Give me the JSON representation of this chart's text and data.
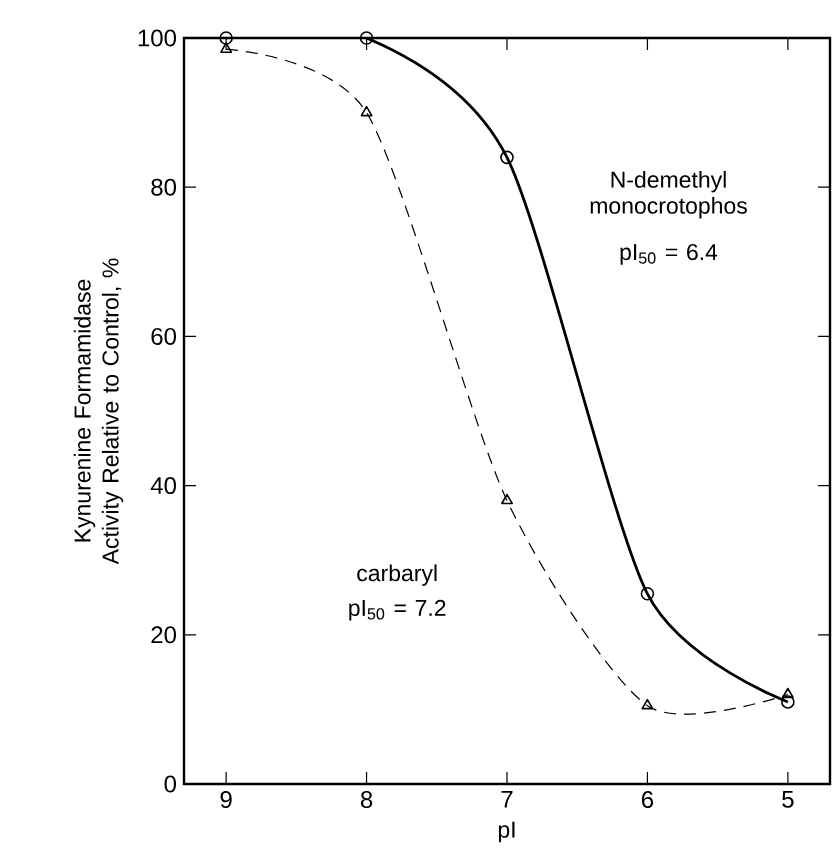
{
  "chart_data": {
    "type": "line",
    "xlabel": "pI",
    "ylabel": "Kynurenine Formamidase Activity Relative to Control, %",
    "xlim": [
      9.3,
      4.7
    ],
    "ylim": [
      0,
      100
    ],
    "xticks": [
      9,
      8,
      7,
      6,
      5
    ],
    "yticks": [
      0,
      20,
      40,
      60,
      80,
      100
    ],
    "x": [
      9,
      8,
      7,
      6,
      5
    ],
    "series": [
      {
        "color": "#000000",
        "marker": "circle",
        "line_style": "solid",
        "values": [
          100,
          100,
          84,
          25.5,
          11
        ]
      },
      {
        "color": "#000000",
        "marker": "triangle",
        "line_style": "dashed",
        "values": [
          98.5,
          90,
          38,
          10.5,
          12
        ]
      }
    ],
    "annotations": [
      "N-demethyl monocrotophos",
      "pI$_{50}$ = 6.4",
      "carbaryl",
      "pI$_{50}$ = 7.2"
    ]
  }
}
